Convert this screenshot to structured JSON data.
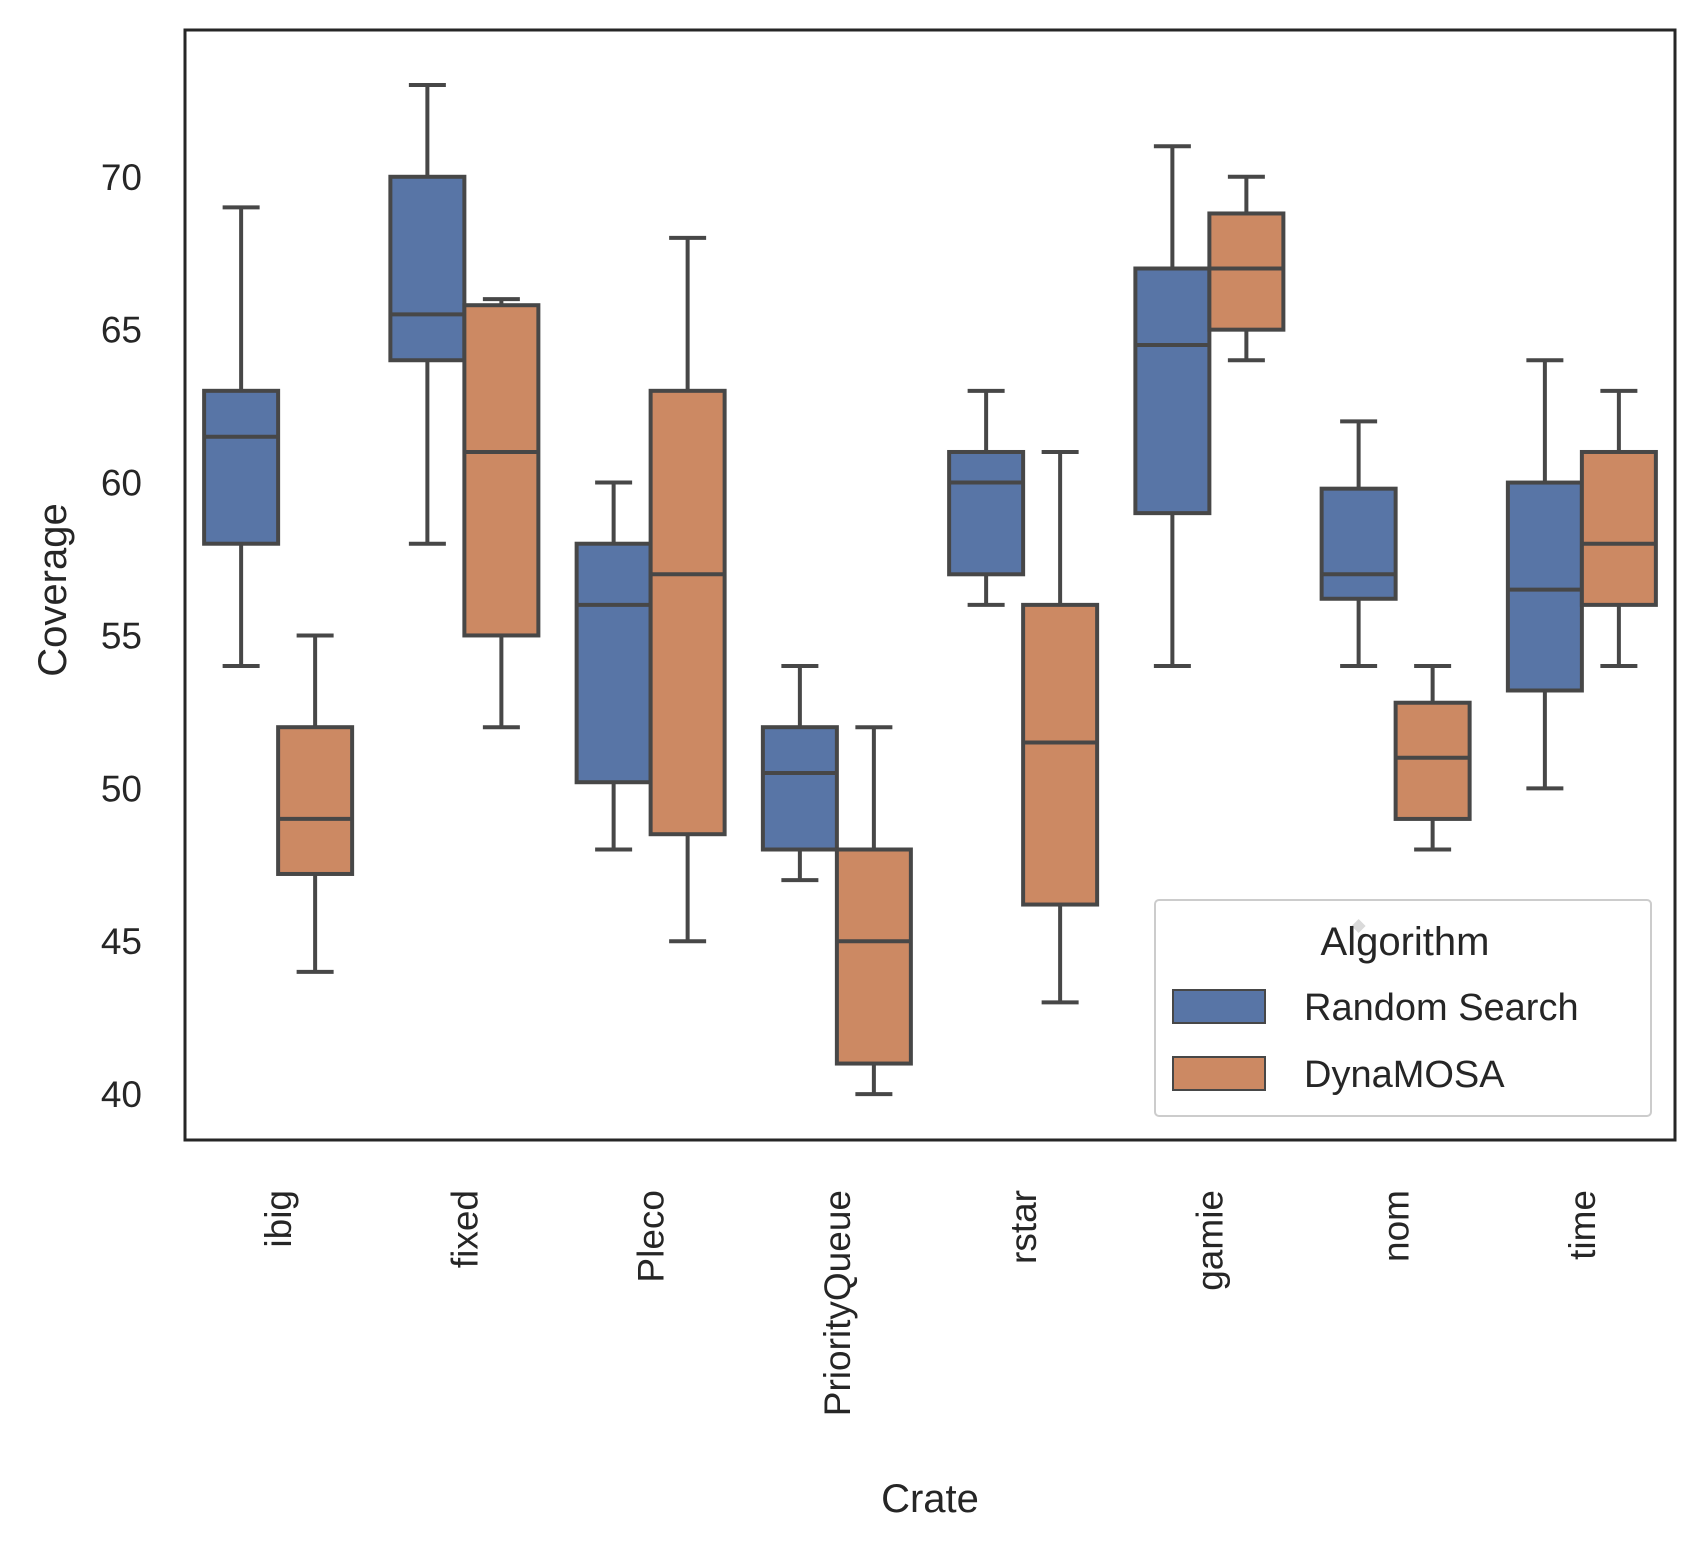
{
  "chart_data": {
    "type": "box",
    "xlabel": "Crate",
    "ylabel": "Coverage",
    "ylim": [
      38.5,
      74.8
    ],
    "yticks": [
      40,
      45,
      50,
      55,
      60,
      65,
      70
    ],
    "categories": [
      "ibig",
      "fixed",
      "Pleco",
      "PriorityQueue",
      "rstar",
      "gamie",
      "nom",
      "time"
    ],
    "legend": {
      "title": "Algorithm",
      "position": "lower-right"
    },
    "grid": false,
    "series": [
      {
        "name": "Random Search",
        "color": "#5875a6",
        "boxes": [
          {
            "whislo": 54,
            "q1": 58,
            "med": 61.5,
            "q3": 63,
            "whishi": 69
          },
          {
            "whislo": 58,
            "q1": 64,
            "med": 65.5,
            "q3": 70,
            "whishi": 73
          },
          {
            "whislo": 48,
            "q1": 50.2,
            "med": 56,
            "q3": 58,
            "whishi": 60
          },
          {
            "whislo": 47,
            "q1": 48,
            "med": 50.5,
            "q3": 52,
            "whishi": 54
          },
          {
            "whislo": 56,
            "q1": 57,
            "med": 60,
            "q3": 61,
            "whishi": 63
          },
          {
            "whislo": 54,
            "q1": 59,
            "med": 64.5,
            "q3": 67,
            "whishi": 71
          },
          {
            "whislo": 54,
            "q1": 56.2,
            "med": 57,
            "q3": 59.8,
            "whishi": 62
          },
          {
            "whislo": 50,
            "q1": 53.2,
            "med": 56.5,
            "q3": 60,
            "whishi": 64
          }
        ]
      },
      {
        "name": "DynaMOSA",
        "color": "#cc8963",
        "boxes": [
          {
            "whislo": 44,
            "q1": 47.2,
            "med": 49,
            "q3": 52,
            "whishi": 55
          },
          {
            "whislo": 52,
            "q1": 55,
            "med": 61,
            "q3": 65.8,
            "whishi": 66
          },
          {
            "whislo": 45,
            "q1": 48.5,
            "med": 57,
            "q3": 63,
            "whishi": 68
          },
          {
            "whislo": 40,
            "q1": 41,
            "med": 45,
            "q3": 48,
            "whishi": 52
          },
          {
            "whislo": 43,
            "q1": 46.2,
            "med": 51.5,
            "q3": 56,
            "whishi": 61
          },
          {
            "whislo": 64,
            "q1": 65,
            "med": 67,
            "q3": 68.8,
            "whishi": 70
          },
          {
            "whislo": 48,
            "q1": 49,
            "med": 51,
            "q3": 52.8,
            "whishi": 54
          },
          {
            "whislo": 54,
            "q1": 56,
            "med": 58,
            "q3": 61,
            "whishi": 63
          }
        ]
      }
    ],
    "outliers": [
      {
        "category": "nom",
        "series": "Random Search",
        "value": 45.5
      }
    ]
  }
}
